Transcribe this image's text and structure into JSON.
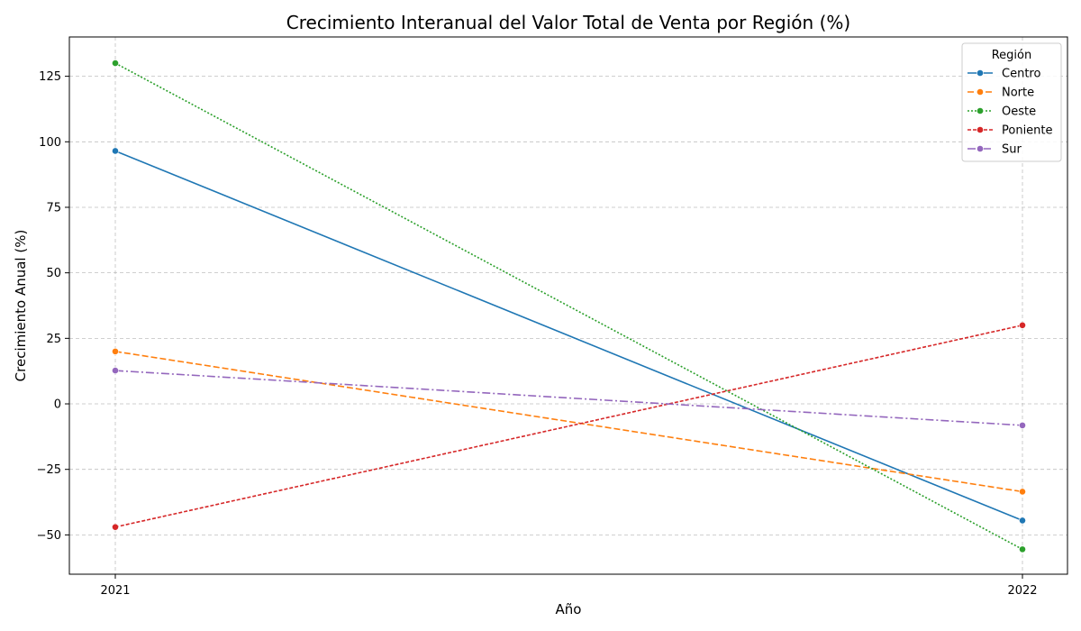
{
  "chart_data": {
    "type": "line",
    "title": "Crecimiento Interanual del Valor Total de Venta por Región (%)",
    "xlabel": "Año",
    "ylabel": "Crecimiento Anual (%)",
    "x": [
      "2021",
      "2022"
    ],
    "ylim": [
      -65,
      140
    ],
    "yticks": [
      -50,
      -25,
      0,
      25,
      50,
      75,
      100,
      125
    ],
    "ytick_labels": [
      "−50",
      "−25",
      "0",
      "25",
      "50",
      "75",
      "100",
      "125"
    ],
    "grid": true,
    "legend": {
      "title": "Región",
      "placement": "top-right"
    },
    "series": [
      {
        "name": "Centro",
        "values": [
          96.5,
          -44.5
        ],
        "color": "#1f77b4",
        "dash": "solid"
      },
      {
        "name": "Norte",
        "values": [
          20.0,
          -33.5
        ],
        "color": "#ff7f0e",
        "dash": "dashed"
      },
      {
        "name": "Oeste",
        "values": [
          130.0,
          -55.5
        ],
        "color": "#2ca02c",
        "dash": "dotted"
      },
      {
        "name": "Poniente",
        "values": [
          -47.0,
          30.0
        ],
        "color": "#d62728",
        "dash": "densedash"
      },
      {
        "name": "Sur",
        "values": [
          12.7,
          -8.2
        ],
        "color": "#9467bd",
        "dash": "dashdot"
      }
    ]
  }
}
